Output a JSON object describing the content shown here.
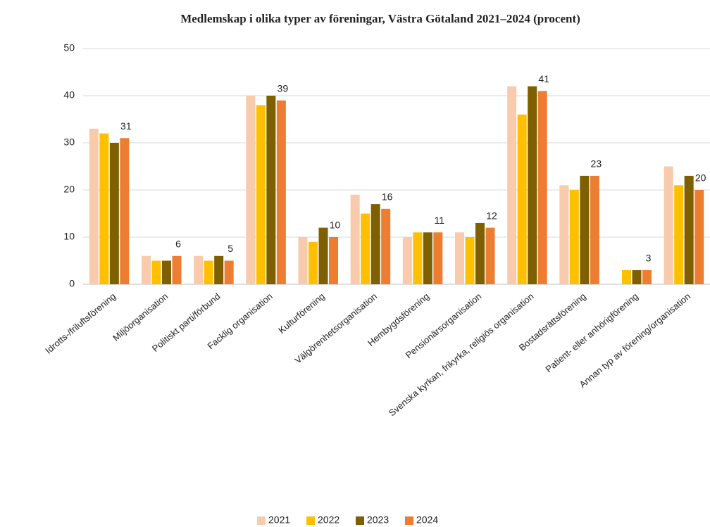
{
  "chart_data": {
    "type": "bar",
    "title": "Medlemskap i olika typer av föreningar, Västra Götaland 2021–2024 (procent)",
    "categories": [
      "Idrotts-/friluftsförening",
      "Miljöorganisation",
      "Politiskt parti/förbund",
      "Facklig organisation",
      "Kulturförening",
      "Välgörenhetsorganisation",
      "Hembygdsförening",
      "Pensionärsorganisation",
      "Svenska kyrkan, frikyrka, religiös organisation",
      "Bostadsrättsförening",
      "Patient- eller anhörigförening",
      "Annan typ av förening/organisation"
    ],
    "series": [
      {
        "name": "2021",
        "color": "#f8cbad",
        "values": [
          33,
          6,
          6,
          40,
          10,
          19,
          10,
          11,
          42,
          21,
          null,
          25
        ]
      },
      {
        "name": "2022",
        "color": "#ffc000",
        "values": [
          32,
          5,
          5,
          38,
          9,
          15,
          11,
          10,
          36,
          20,
          3,
          21
        ]
      },
      {
        "name": "2023",
        "color": "#7f6000",
        "values": [
          30,
          5,
          6,
          40,
          12,
          17,
          11,
          13,
          42,
          23,
          3,
          23
        ]
      },
      {
        "name": "2024",
        "color": "#ed7d31",
        "values": [
          31,
          6,
          5,
          39,
          10,
          16,
          11,
          12,
          41,
          23,
          3,
          20
        ],
        "show_labels": true
      }
    ],
    "ylim": [
      0,
      50
    ],
    "yticks": [
      0,
      10,
      20,
      30,
      40,
      50
    ],
    "grid": true,
    "legend": "bottom"
  }
}
